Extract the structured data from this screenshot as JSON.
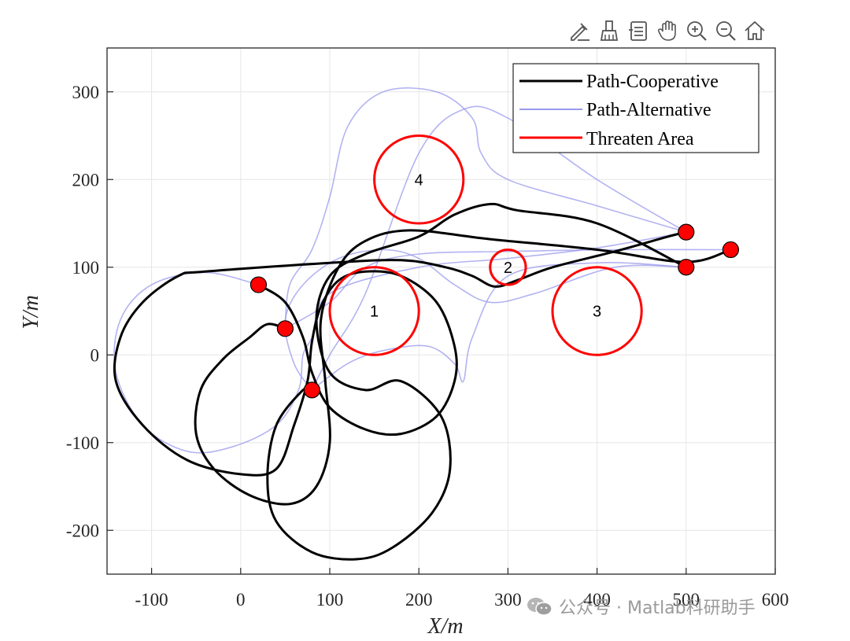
{
  "toolbar": {
    "icons": [
      "annotate-icon",
      "brush-icon",
      "data-tips-icon",
      "pan-icon",
      "zoom-in-icon",
      "zoom-out-icon",
      "home-icon"
    ]
  },
  "watermark": {
    "text": "公众号 · Matlab科研助手"
  },
  "chart_data": {
    "type": "line",
    "xlabel": "X/m",
    "ylabel": "Y/m",
    "xlim": [
      -150,
      600
    ],
    "ylim": [
      -250,
      350
    ],
    "xticks": [
      -100,
      0,
      100,
      200,
      300,
      400,
      500,
      600
    ],
    "yticks": [
      -200,
      -100,
      0,
      100,
      200,
      300
    ],
    "xtick_labels": [
      "-100",
      "0",
      "100",
      "200",
      "300",
      "400",
      "500",
      "600"
    ],
    "ytick_labels": [
      "-200",
      "-100",
      "0",
      "100",
      "200",
      "300"
    ],
    "grid": true,
    "legend": {
      "placement": "top-right",
      "entries": [
        {
          "label": "Path-Cooperative",
          "color": "#000000"
        },
        {
          "label": "Path-Alternative",
          "color": "#9999ee"
        },
        {
          "label": "Threaten Area",
          "color": "#ff0000"
        }
      ]
    },
    "threat_areas": [
      {
        "label": "1",
        "cx": 150,
        "cy": 50,
        "r": 50
      },
      {
        "label": "2",
        "cx": 300,
        "cy": 100,
        "r": 20
      },
      {
        "label": "3",
        "cx": 400,
        "cy": 50,
        "r": 50
      },
      {
        "label": "4",
        "cx": 200,
        "cy": 200,
        "r": 50
      }
    ],
    "start_points": [
      {
        "x": 20,
        "y": 80
      },
      {
        "x": 50,
        "y": 30
      },
      {
        "x": 80,
        "y": -40
      }
    ],
    "target_points": [
      {
        "x": 500,
        "y": 140
      },
      {
        "x": 550,
        "y": 120
      },
      {
        "x": 500,
        "y": 100
      }
    ],
    "series": [
      {
        "name": "Path-Cooperative",
        "color": "#000000",
        "paths": [
          [
            [
              20,
              80
            ],
            [
              50,
              60
            ],
            [
              70,
              20
            ],
            [
              80,
              -20
            ],
            [
              100,
              -60
            ],
            [
              140,
              -85
            ],
            [
              180,
              -90
            ],
            [
              220,
              -70
            ],
            [
              240,
              -30
            ],
            [
              240,
              10
            ],
            [
              220,
              60
            ],
            [
              180,
              90
            ],
            [
              140,
              95
            ],
            [
              110,
              85
            ],
            [
              90,
              55
            ],
            [
              80,
              15
            ],
            [
              75,
              -30
            ],
            [
              60,
              -80
            ],
            [
              40,
              -130
            ],
            [
              0,
              -136
            ],
            [
              -60,
              -120
            ],
            [
              -110,
              -80
            ],
            [
              -140,
              -30
            ],
            [
              -135,
              20
            ],
            [
              -110,
              60
            ],
            [
              -70,
              90
            ],
            [
              -40,
              95
            ],
            [
              100,
              105
            ],
            [
              180,
              108
            ],
            [
              230,
              100
            ],
            [
              260,
              90
            ],
            [
              285,
              78
            ],
            [
              310,
              85
            ],
            [
              350,
              100
            ],
            [
              420,
              118
            ],
            [
              480,
              135
            ],
            [
              500,
              140
            ]
          ],
          [
            [
              50,
              30
            ],
            [
              30,
              35
            ],
            [
              10,
              20
            ],
            [
              -20,
              -5
            ],
            [
              -45,
              -40
            ],
            [
              -50,
              -90
            ],
            [
              -30,
              -130
            ],
            [
              10,
              -160
            ],
            [
              55,
              -170
            ],
            [
              85,
              -150
            ],
            [
              100,
              -100
            ],
            [
              95,
              -30
            ],
            [
              90,
              40
            ],
            [
              110,
              100
            ],
            [
              140,
              130
            ],
            [
              190,
              142
            ],
            [
              280,
              132
            ],
            [
              400,
              120
            ],
            [
              500,
              106
            ],
            [
              550,
              120
            ]
          ],
          [
            [
              80,
              -40
            ],
            [
              70,
              -40
            ],
            [
              40,
              -80
            ],
            [
              30,
              -140
            ],
            [
              40,
              -190
            ],
            [
              80,
              -225
            ],
            [
              130,
              -233
            ],
            [
              170,
              -220
            ],
            [
              215,
              -180
            ],
            [
              235,
              -130
            ],
            [
              225,
              -70
            ],
            [
              180,
              -30
            ],
            [
              140,
              -40
            ],
            [
              100,
              -20
            ],
            [
              85,
              40
            ],
            [
              100,
              90
            ],
            [
              140,
              115
            ],
            [
              200,
              135
            ],
            [
              240,
              160
            ],
            [
              280,
              172
            ],
            [
              310,
              165
            ],
            [
              400,
              150
            ],
            [
              500,
              100
            ]
          ]
        ]
      },
      {
        "name": "Path-Alternative",
        "color": "#9999ee",
        "paths": [
          [
            [
              20,
              80
            ],
            [
              -40,
              94
            ],
            [
              -100,
              80
            ],
            [
              -135,
              40
            ],
            [
              -140,
              -20
            ],
            [
              -110,
              -80
            ],
            [
              -60,
              -110
            ],
            [
              -10,
              -105
            ],
            [
              40,
              -80
            ],
            [
              65,
              -40
            ],
            [
              70,
              0
            ],
            [
              80,
              20
            ],
            [
              100,
              70
            ],
            [
              200,
              100
            ],
            [
              300,
              110
            ],
            [
              400,
              122
            ],
            [
              500,
              140
            ]
          ],
          [
            [
              50,
              30
            ],
            [
              100,
              60
            ],
            [
              140,
              100
            ],
            [
              200,
              115
            ],
            [
              300,
              118
            ],
            [
              420,
              120
            ],
            [
              550,
              120
            ]
          ],
          [
            [
              80,
              -40
            ],
            [
              120,
              -10
            ],
            [
              160,
              5
            ],
            [
              210,
              10
            ],
            [
              240,
              -10
            ],
            [
              250,
              -30
            ],
            [
              260,
              20
            ],
            [
              300,
              90
            ],
            [
              400,
              105
            ],
            [
              500,
              100
            ]
          ],
          [
            [
              80,
              -40
            ],
            [
              60,
              -10
            ],
            [
              50,
              40
            ],
            [
              70,
              80
            ],
            [
              110,
              110
            ],
            [
              160,
              120
            ],
            [
              200,
              110
            ],
            [
              240,
              80
            ],
            [
              280,
              60
            ],
            [
              330,
              70
            ],
            [
              420,
              100
            ],
            [
              500,
              100
            ]
          ],
          [
            [
              50,
              30
            ],
            [
              55,
              80
            ],
            [
              80,
              120
            ],
            [
              100,
              180
            ],
            [
              120,
              260
            ],
            [
              160,
              300
            ],
            [
              220,
              300
            ],
            [
              260,
              270
            ],
            [
              270,
              230
            ],
            [
              300,
              200
            ],
            [
              400,
              170
            ],
            [
              500,
              140
            ]
          ],
          [
            [
              80,
              -40
            ],
            [
              100,
              0
            ],
            [
              140,
              70
            ],
            [
              200,
              230
            ],
            [
              250,
              280
            ],
            [
              300,
              270
            ],
            [
              400,
              200
            ],
            [
              500,
              140
            ]
          ]
        ]
      }
    ]
  }
}
